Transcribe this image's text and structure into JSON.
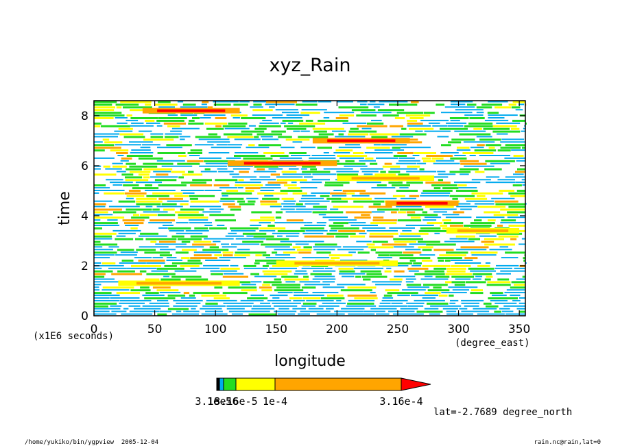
{
  "chart_data": {
    "type": "heatmap",
    "title": "xyz_Rain",
    "xlabel": "longitude",
    "ylabel": "time",
    "x_units": "(degree_east)",
    "y_units": "(x1E6 seconds)",
    "xlim": [
      0,
      355
    ],
    "ylim": [
      0,
      8.6
    ],
    "x_ticks": [
      0,
      50,
      100,
      150,
      200,
      250,
      300,
      350
    ],
    "y_ticks": [
      0,
      2,
      4,
      6,
      8
    ],
    "color_levels": {
      "boundary_labels": [
        "3.16e-6",
        "1e-5",
        "3.16e-5",
        "1e-4",
        "3.16e-4"
      ],
      "colors": [
        "#00aaee",
        "#22dd22",
        "#ffff00",
        "#ffa500",
        "#ff0000"
      ]
    },
    "bands": [
      {
        "t": 6.1,
        "lon_start": 110,
        "lon_end": 200,
        "level": 4
      },
      {
        "t": 5.5,
        "lon_start": 200,
        "lon_end": 280,
        "level": 3
      },
      {
        "t": 4.5,
        "lon_start": 240,
        "lon_end": 300,
        "level": 4
      },
      {
        "t": 2.1,
        "lon_start": 150,
        "lon_end": 250,
        "level": 3
      },
      {
        "t": 1.3,
        "lon_start": 20,
        "lon_end": 120,
        "level": 3
      },
      {
        "t": 3.4,
        "lon_start": 290,
        "lon_end": 350,
        "level": 3
      },
      {
        "t": 8.2,
        "lon_start": 40,
        "lon_end": 120,
        "level": 4
      },
      {
        "t": 7.0,
        "lon_start": 180,
        "lon_end": 260,
        "level": 4
      }
    ],
    "annotation": "lat=-2.7689 degree_north"
  },
  "footer": {
    "left": "/home/yukiko/bin/ygpview  2005-12-04",
    "right": "rain.nc@rain,lat=0"
  }
}
